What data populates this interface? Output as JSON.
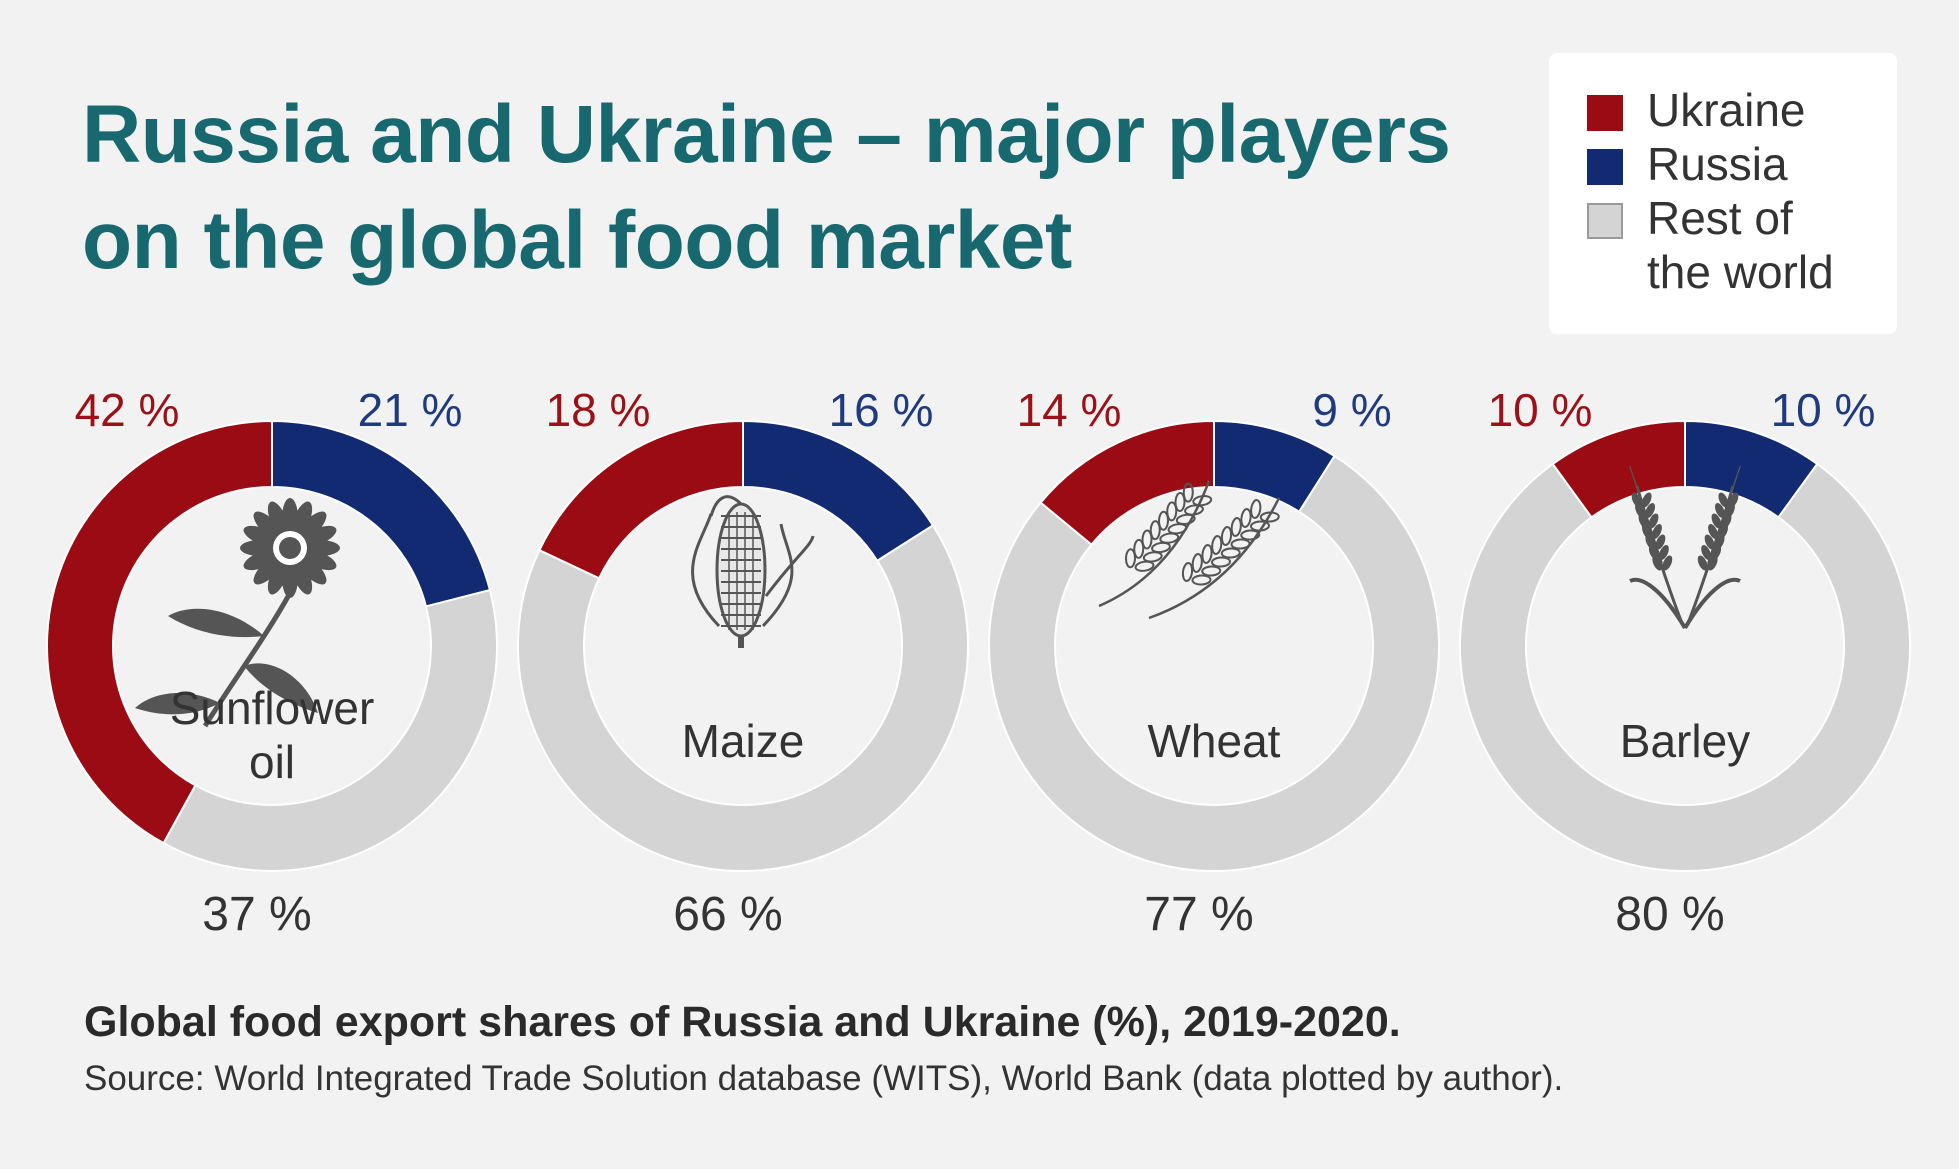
{
  "title": "Russia and Ukraine – major players on the global food market",
  "legend": [
    {
      "label": "Ukraine",
      "color": "#9b0b14"
    },
    {
      "label": "Russia",
      "color": "#122a72"
    },
    {
      "label": "Rest of the world",
      "color": "#d4d4d4"
    }
  ],
  "chart_data": {
    "type": "pie",
    "subtitle": "Global food export shares of Russia and Ukraine (%), 2019-2020.",
    "source": "Source: World Integrated Trade Solution database (WITS), World Bank (data plotted by author).",
    "series_names": [
      "Ukraine",
      "Russia",
      "Rest of the world"
    ],
    "charts": [
      {
        "name": "Sunflower oil",
        "icon": "sunflower-icon",
        "ukraine": 42,
        "russia": 21,
        "rest": 37,
        "ukraine_label": "42 %",
        "russia_label": "21 %",
        "rest_label": "37 %"
      },
      {
        "name": "Maize",
        "icon": "maize-icon",
        "ukraine": 18,
        "russia": 16,
        "rest": 66,
        "ukraine_label": "18 %",
        "russia_label": "16 %",
        "rest_label": "66 %"
      },
      {
        "name": "Wheat",
        "icon": "wheat-icon",
        "ukraine": 14,
        "russia": 9,
        "rest": 77,
        "ukraine_label": "14 %",
        "russia_label": "9 %",
        "rest_label": "77 %"
      },
      {
        "name": "Barley",
        "icon": "barley-icon",
        "ukraine": 10,
        "russia": 10,
        "rest": 80,
        "ukraine_label": "10 %",
        "russia_label": "10 %",
        "rest_label": "80 %"
      }
    ]
  },
  "colors": {
    "ukraine": "#9b0b14",
    "russia": "#122a72",
    "rest": "#d4d4d4",
    "ukraine_text": "#9b1118",
    "russia_text": "#1f3b80",
    "rest_text": "#333333",
    "title": "#17696f",
    "icon": "#555555"
  }
}
